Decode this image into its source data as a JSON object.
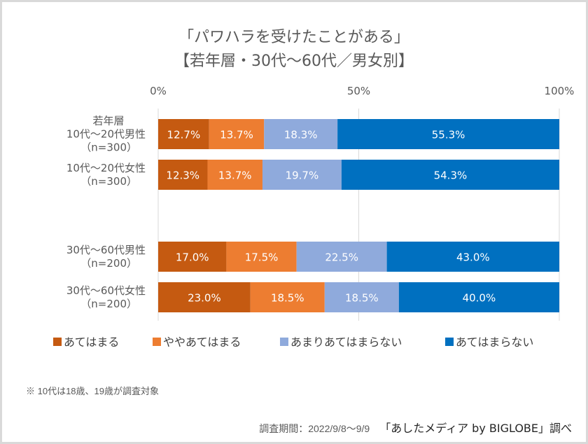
{
  "chart_data": {
    "type": "bar",
    "orientation": "horizontal",
    "stacked": "percent",
    "title": "「パワハラを受けたことがある」",
    "subtitle": "【若年層・30代～60代／男女別】",
    "xlim": [
      0,
      100
    ],
    "x_ticks": [
      "0%",
      "50%",
      "100%"
    ],
    "x_tick_values": [
      0,
      50,
      100
    ],
    "grid": true,
    "legend_position": "bottom",
    "categories": [
      {
        "label_lines": [
          "若年層",
          "10代～20代男性",
          "（n=300）"
        ]
      },
      {
        "label_lines": [
          "10代～20代女性",
          "（n=300）"
        ]
      },
      {
        "label_lines": [
          "30代～60代男性",
          "（n=200）"
        ]
      },
      {
        "label_lines": [
          "30代～60代女性",
          "（n=200）"
        ]
      }
    ],
    "series": [
      {
        "name": "あてはまる",
        "color": "#c55a11",
        "values": [
          12.7,
          12.3,
          17.0,
          23.0
        ]
      },
      {
        "name": "ややあてはまる",
        "color": "#ed7d31",
        "values": [
          13.7,
          13.7,
          17.5,
          18.5
        ]
      },
      {
        "name": "あまりあてはまらない",
        "color": "#8faadc",
        "values": [
          18.3,
          19.7,
          22.5,
          18.5
        ]
      },
      {
        "name": "あてはまらない",
        "color": "#0070c0",
        "values": [
          55.3,
          54.3,
          43.0,
          40.0
        ]
      }
    ]
  },
  "note": "※ 10代は18歳、19歳が調査対象",
  "footer": {
    "period": "調査期間：2022/9/8～9/9",
    "credit": "「あしたメディア by BIGLOBE」調べ"
  }
}
